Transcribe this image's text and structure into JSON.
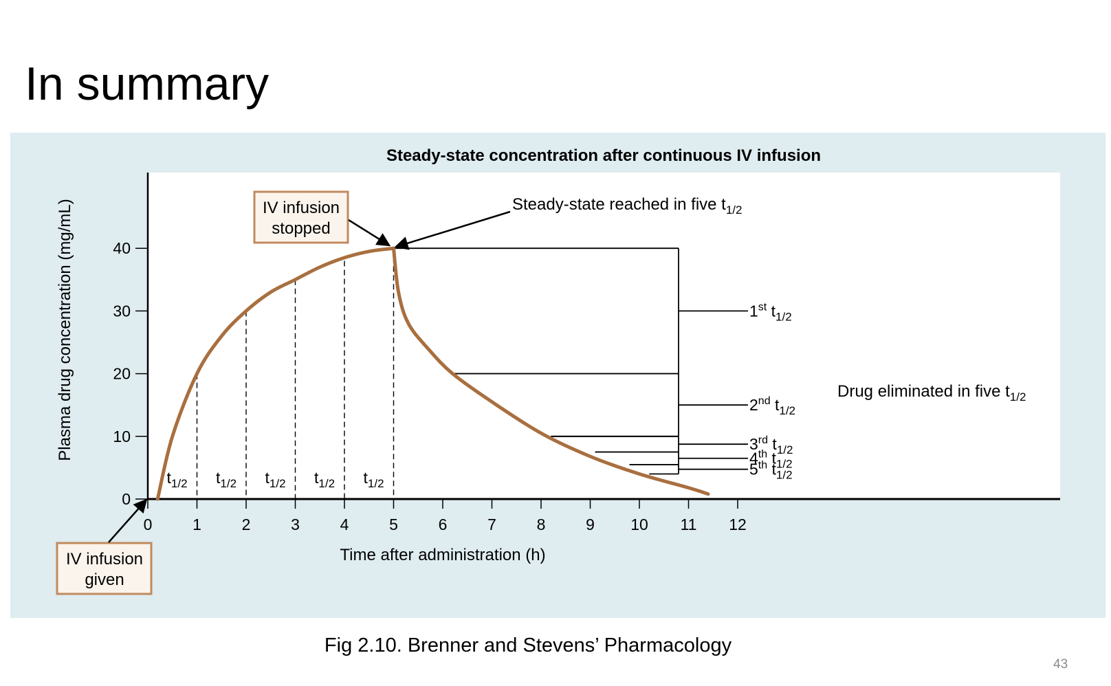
{
  "slide": {
    "title": "In summary",
    "caption": "Fig 2.10. Brenner and Stevens’ Pharmacology",
    "page_number": "43"
  },
  "colors": {
    "panel_background": "#dfecf0",
    "plot_background": "#ffffff",
    "curve": "#a96f3f",
    "callout_border": "#c08a5e",
    "callout_fill": "#fbf4ec",
    "axis": "#000000"
  },
  "chart_data": {
    "type": "line",
    "title": "Steady-state concentration after continuous IV infusion",
    "xlabel": "Time after administration (h)",
    "ylabel": "Plasma drug concentration (mg/mL)",
    "xlim": [
      0,
      12
    ],
    "ylim": [
      0,
      40
    ],
    "x_ticks": [
      "0",
      "1",
      "2",
      "3",
      "4",
      "5",
      "6",
      "7",
      "8",
      "9",
      "10",
      "11",
      "12"
    ],
    "y_ticks": [
      "0",
      "10",
      "20",
      "30",
      "40"
    ],
    "grid": false,
    "series": [
      {
        "segment": "infusion",
        "x": [
          0.2,
          0.5,
          1,
          1.5,
          2,
          2.5,
          3,
          3.5,
          4,
          4.5,
          5
        ],
        "y": [
          0,
          10,
          20,
          26,
          30,
          33,
          35,
          37,
          38.5,
          39.5,
          40
        ]
      },
      {
        "segment": "elimination",
        "x": [
          5,
          5.1,
          5.3,
          5.7,
          6.2,
          7,
          8,
          9,
          10,
          11,
          11.4
        ],
        "y": [
          40,
          33,
          28,
          24,
          20,
          15.5,
          10.5,
          6.8,
          4,
          1.8,
          0.8
        ]
      }
    ],
    "half_life_markers": {
      "times": [
        1,
        2,
        3,
        4,
        5
      ],
      "concentrations": [
        20,
        30,
        35,
        38,
        40
      ],
      "interval_labels": [
        {
          "base": "t",
          "sub": "1/2"
        },
        {
          "base": "t",
          "sub": "1/2"
        },
        {
          "base": "t",
          "sub": "1/2"
        },
        {
          "base": "t",
          "sub": "1/2"
        },
        {
          "base": "t",
          "sub": "1/2"
        }
      ]
    },
    "elimination_half_lives": [
      {
        "order": "1",
        "sup": "st",
        "base": "t",
        "sub": "1/2",
        "from": 40,
        "to": 20,
        "start_x": 6.2
      },
      {
        "order": "2",
        "sup": "nd",
        "base": "t",
        "sub": "1/2",
        "from": 20,
        "to": 10,
        "start_x": 8.2
      },
      {
        "order": "3",
        "sup": "rd",
        "base": "t",
        "sub": "1/2",
        "from": 10,
        "to": 7.5,
        "start_x": 9.1
      },
      {
        "order": "4",
        "sup": "th",
        "base": "t",
        "sub": "1/2",
        "from": 7.5,
        "to": 5.5,
        "start_x": 9.8
      },
      {
        "order": "5",
        "sup": "th",
        "base": "t",
        "sub": "1/2",
        "from": 5.5,
        "to": 4,
        "start_x": 10.2
      }
    ],
    "annotations": {
      "steady_state": {
        "text": "Steady-state reached in five t",
        "sub": "1/2"
      },
      "eliminated": {
        "text": "Drug eliminated in five t",
        "sub": "1/2"
      },
      "infusion_stopped": [
        "IV infusion",
        "stopped"
      ],
      "infusion_given": [
        "IV infusion",
        "given"
      ]
    }
  }
}
